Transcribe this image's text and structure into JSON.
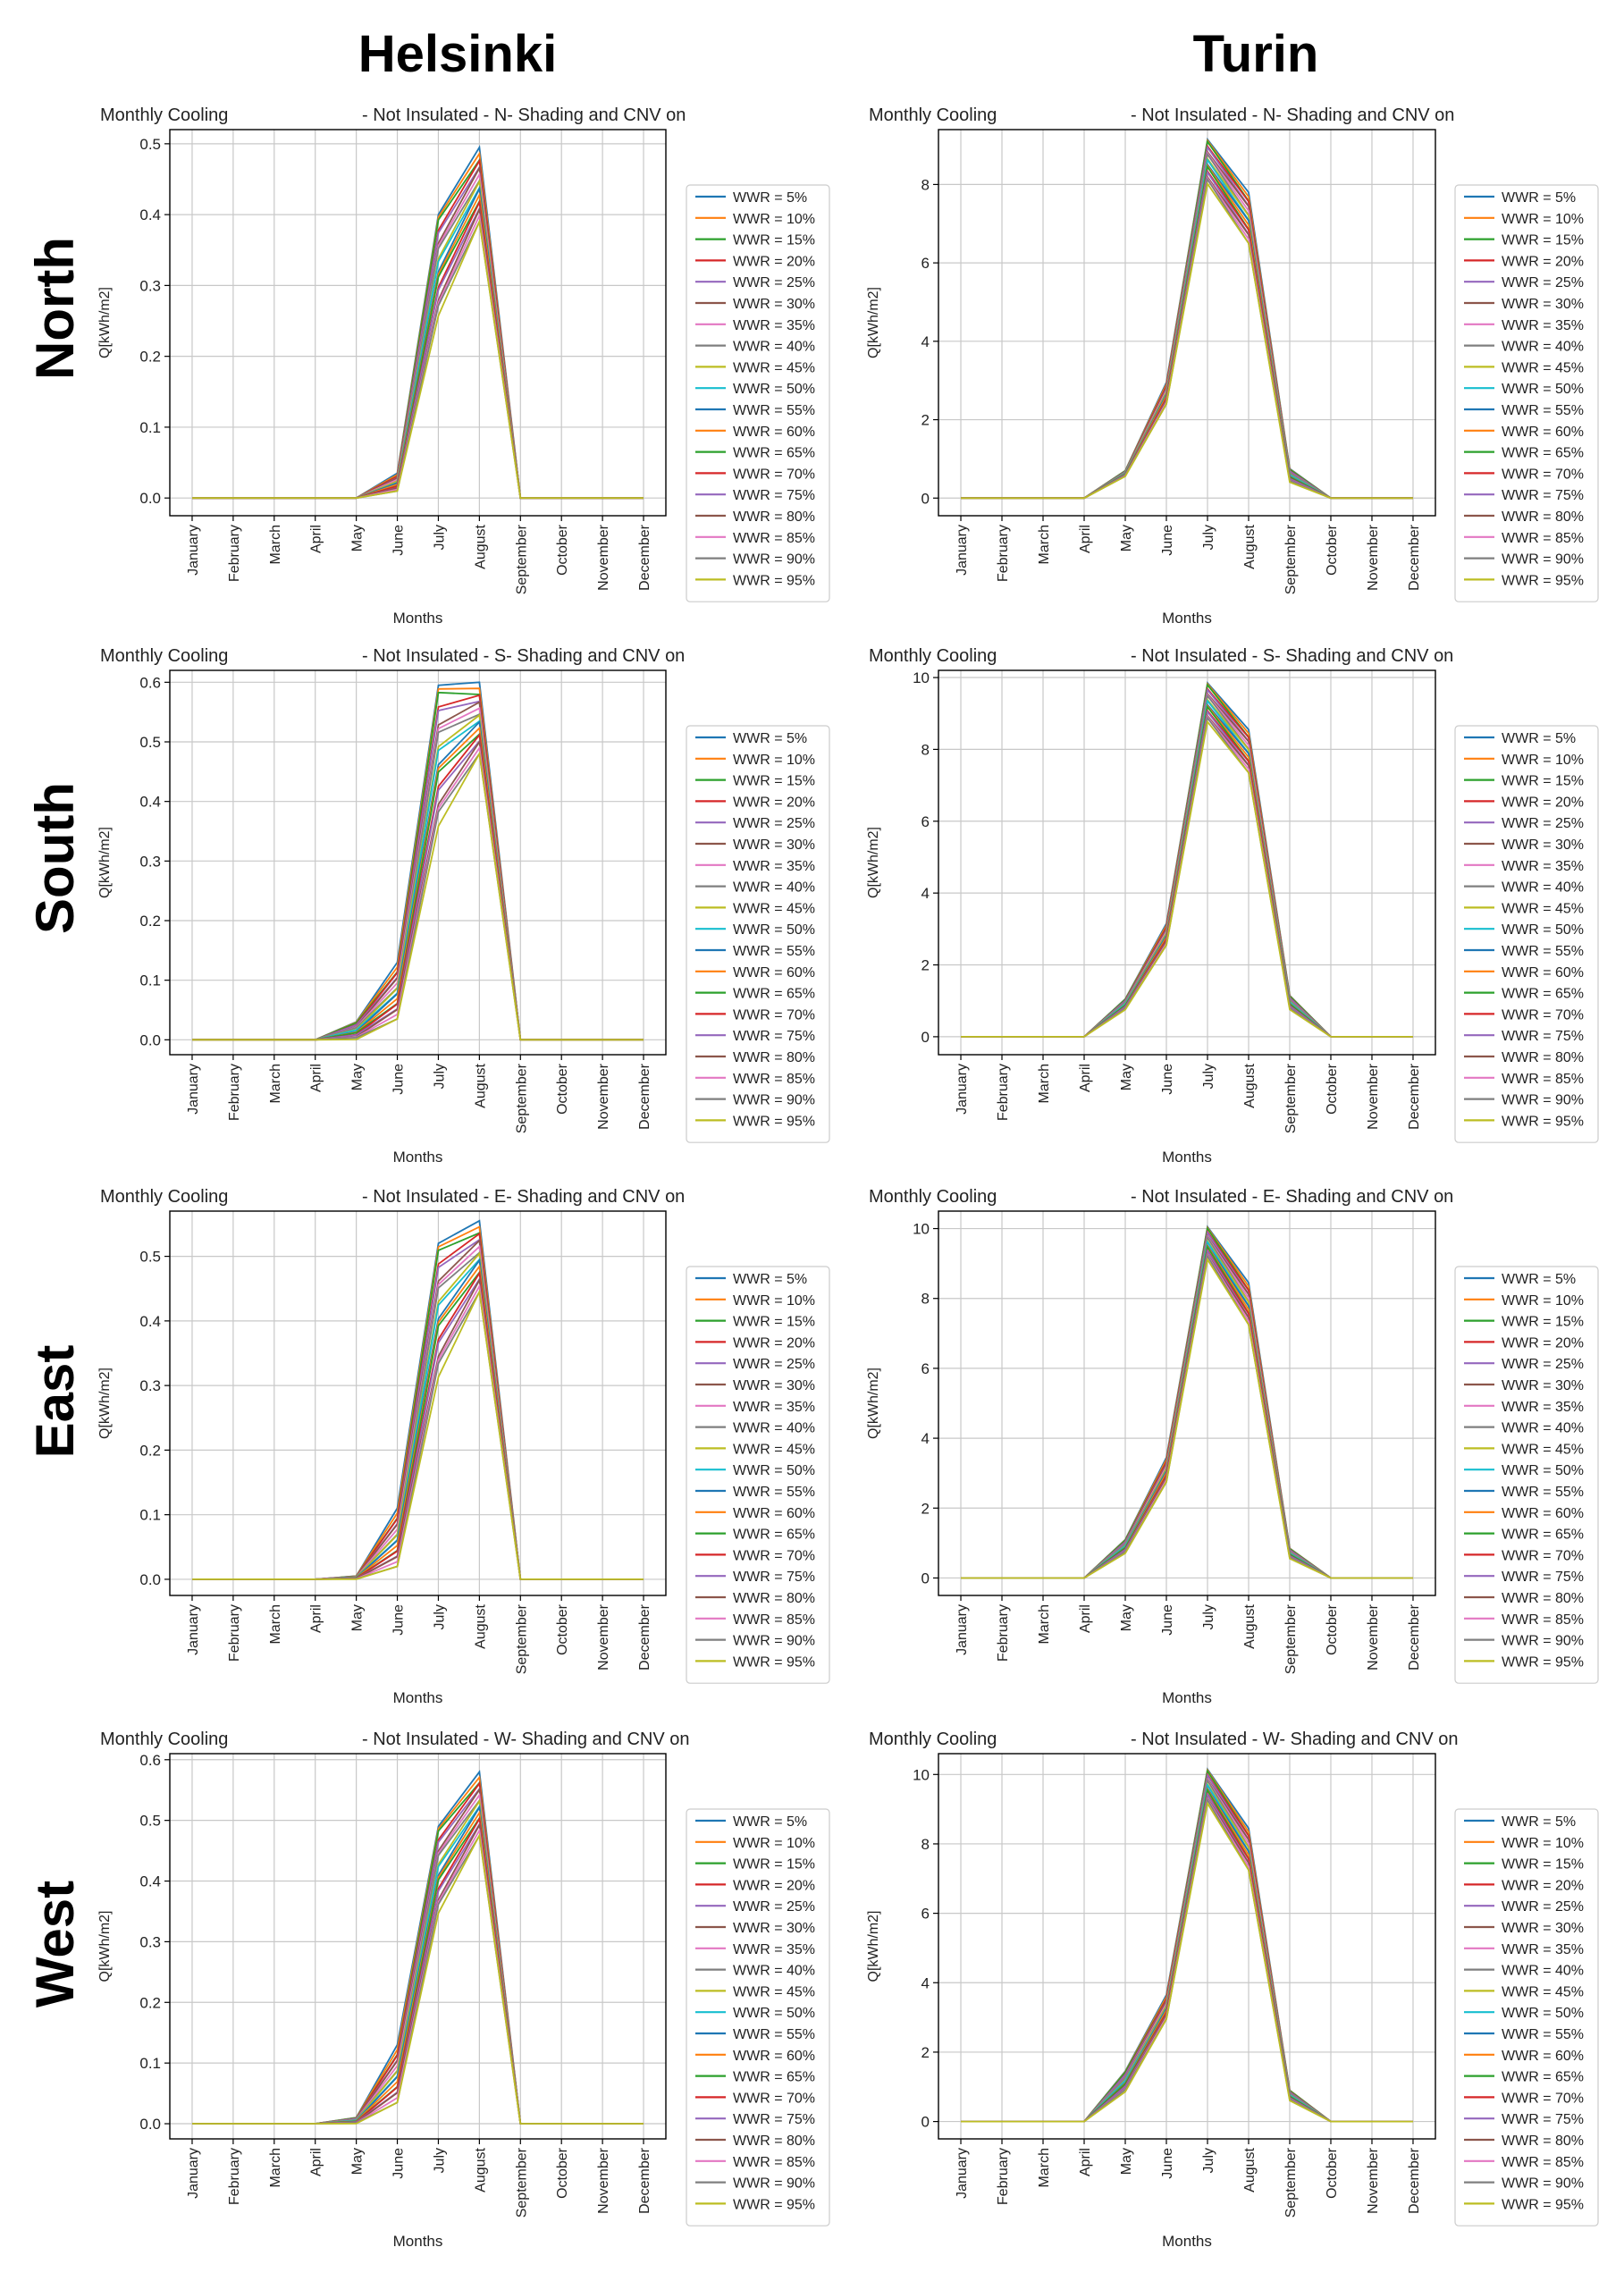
{
  "columns": [
    "Helsinki",
    "Turin"
  ],
  "rows": [
    "North",
    "South",
    "East",
    "West"
  ],
  "months": [
    "January",
    "February",
    "March",
    "April",
    "May",
    "June",
    "July",
    "August",
    "September",
    "October",
    "November",
    "December"
  ],
  "legend_labels": [
    "WWR = 5%",
    "WWR = 10%",
    "WWR = 15%",
    "WWR = 20%",
    "WWR = 25%",
    "WWR = 30%",
    "WWR = 35%",
    "WWR = 40%",
    "WWR = 45%",
    "WWR = 50%",
    "WWR = 55%",
    "WWR = 60%",
    "WWR = 65%",
    "WWR = 70%",
    "WWR = 75%",
    "WWR = 80%",
    "WWR = 85%",
    "WWR = 90%",
    "WWR = 95%"
  ],
  "palette": [
    "#1f77b4",
    "#ff7f0e",
    "#2ca02c",
    "#d62728",
    "#9467bd",
    "#8c564b",
    "#e377c2",
    "#7f7f7f",
    "#bcbd22",
    "#17becf"
  ],
  "chart_data": [
    {
      "id": "helsinki-north",
      "type": "line",
      "title_left": "Monthly Cooling",
      "title_right": "- Not Insulated - N- Shading and CNV on",
      "xlabel": "Months",
      "ylabel": "Q[kWh/m2]",
      "ylim": [
        -0.025,
        0.52
      ],
      "yticks": [
        0,
        0.1,
        0.2,
        0.3,
        0.4,
        0.5
      ],
      "ytick_labels": [
        "0.0",
        "0.1",
        "0.2",
        "0.3",
        "0.4",
        "0.5"
      ],
      "peak_range": [
        [
          0,
          0
        ],
        [
          0,
          0
        ],
        [
          0,
          0
        ],
        [
          0,
          0
        ],
        [
          0,
          0
        ],
        [
          0.01,
          0.035
        ],
        [
          0.255,
          0.4
        ],
        [
          0.39,
          0.495
        ],
        [
          0,
          0
        ],
        [
          0,
          0
        ],
        [
          0,
          0
        ],
        [
          0,
          0
        ]
      ]
    },
    {
      "id": "turin-north",
      "type": "line",
      "title_left": "Monthly Cooling",
      "title_right": "- Not Insulated - N- Shading and CNV on",
      "xlabel": "Months",
      "ylabel": "Q[kWh/m2]",
      "ylim": [
        -0.45,
        9.4
      ],
      "yticks": [
        0,
        2,
        4,
        6,
        8
      ],
      "ytick_labels": [
        "0",
        "2",
        "4",
        "6",
        "8"
      ],
      "peak_range": [
        [
          0,
          0
        ],
        [
          0,
          0
        ],
        [
          0,
          0
        ],
        [
          0,
          0
        ],
        [
          0.55,
          0.7
        ],
        [
          2.4,
          2.95
        ],
        [
          8.0,
          9.15
        ],
        [
          6.5,
          7.8
        ],
        [
          0.4,
          0.75
        ],
        [
          0,
          0
        ],
        [
          0,
          0
        ],
        [
          0,
          0
        ]
      ]
    },
    {
      "id": "helsinki-south",
      "type": "line",
      "title_left": "Monthly Cooling",
      "title_right": "- Not Insulated - S- Shading and CNV on",
      "xlabel": "Months",
      "ylabel": "Q[kWh/m2]",
      "ylim": [
        -0.025,
        0.62
      ],
      "yticks": [
        0,
        0.1,
        0.2,
        0.3,
        0.4,
        0.5,
        0.6
      ],
      "ytick_labels": [
        "0.0",
        "0.1",
        "0.2",
        "0.3",
        "0.4",
        "0.5",
        "0.6"
      ],
      "peak_range": [
        [
          0,
          0
        ],
        [
          0,
          0
        ],
        [
          0,
          0
        ],
        [
          0,
          0
        ],
        [
          0,
          0.03
        ],
        [
          0.035,
          0.13
        ],
        [
          0.355,
          0.595
        ],
        [
          0.48,
          0.6
        ],
        [
          0,
          0
        ],
        [
          0,
          0
        ],
        [
          0,
          0
        ],
        [
          0,
          0
        ]
      ]
    },
    {
      "id": "turin-south",
      "type": "line",
      "title_left": "Monthly Cooling",
      "title_right": "- Not Insulated - S- Shading and CNV on",
      "xlabel": "Months",
      "ylabel": "Q[kWh/m2]",
      "ylim": [
        -0.5,
        10.2
      ],
      "yticks": [
        0,
        2,
        4,
        6,
        8,
        10
      ],
      "ytick_labels": [
        "0",
        "2",
        "4",
        "6",
        "8",
        "10"
      ],
      "peak_range": [
        [
          0,
          0
        ],
        [
          0,
          0
        ],
        [
          0,
          0
        ],
        [
          0,
          0
        ],
        [
          0.75,
          1.05
        ],
        [
          2.55,
          3.15
        ],
        [
          8.75,
          9.85
        ],
        [
          7.35,
          8.55
        ],
        [
          0.75,
          1.15
        ],
        [
          0,
          0
        ],
        [
          0,
          0
        ],
        [
          0,
          0
        ]
      ]
    },
    {
      "id": "helsinki-east",
      "type": "line",
      "title_left": "Monthly Cooling",
      "title_right": "- Not Insulated - E- Shading and CNV on",
      "xlabel": "Months",
      "ylabel": "Q[kWh/m2]",
      "ylim": [
        -0.025,
        0.57
      ],
      "yticks": [
        0,
        0.1,
        0.2,
        0.3,
        0.4,
        0.5
      ],
      "ytick_labels": [
        "0.0",
        "0.1",
        "0.2",
        "0.3",
        "0.4",
        "0.5"
      ],
      "peak_range": [
        [
          0,
          0
        ],
        [
          0,
          0
        ],
        [
          0,
          0
        ],
        [
          0,
          0
        ],
        [
          0,
          0.005
        ],
        [
          0.02,
          0.11
        ],
        [
          0.31,
          0.52
        ],
        [
          0.445,
          0.555
        ],
        [
          0,
          0
        ],
        [
          0,
          0
        ],
        [
          0,
          0
        ],
        [
          0,
          0
        ]
      ]
    },
    {
      "id": "turin-east",
      "type": "line",
      "title_left": "Monthly Cooling",
      "title_right": "- Not Insulated - E- Shading and CNV on",
      "xlabel": "Months",
      "ylabel": "Q[kWh/m2]",
      "ylim": [
        -0.5,
        10.5
      ],
      "yticks": [
        0,
        2,
        4,
        6,
        8,
        10
      ],
      "ytick_labels": [
        "0",
        "2",
        "4",
        "6",
        "8",
        "10"
      ],
      "peak_range": [
        [
          0,
          0
        ],
        [
          0,
          0
        ],
        [
          0,
          0
        ],
        [
          0,
          0
        ],
        [
          0.7,
          1.1
        ],
        [
          2.75,
          3.45
        ],
        [
          9.1,
          10.05
        ],
        [
          7.25,
          8.45
        ],
        [
          0.55,
          0.85
        ],
        [
          0,
          0
        ],
        [
          0,
          0
        ],
        [
          0,
          0
        ]
      ]
    },
    {
      "id": "helsinki-west",
      "type": "line",
      "title_left": "Monthly Cooling",
      "title_right": "- Not Insulated - W- Shading and CNV on",
      "xlabel": "Months",
      "ylabel": "Q[kWh/m2]",
      "ylim": [
        -0.025,
        0.61
      ],
      "yticks": [
        0,
        0.1,
        0.2,
        0.3,
        0.4,
        0.5,
        0.6
      ],
      "ytick_labels": [
        "0.0",
        "0.1",
        "0.2",
        "0.3",
        "0.4",
        "0.5",
        "0.6"
      ],
      "peak_range": [
        [
          0,
          0
        ],
        [
          0,
          0
        ],
        [
          0,
          0
        ],
        [
          0,
          0
        ],
        [
          0,
          0.01
        ],
        [
          0.035,
          0.13
        ],
        [
          0.345,
          0.49
        ],
        [
          0.475,
          0.58
        ],
        [
          0,
          0
        ],
        [
          0,
          0
        ],
        [
          0,
          0
        ],
        [
          0,
          0
        ]
      ]
    },
    {
      "id": "turin-west",
      "type": "line",
      "title_left": "Monthly Cooling",
      "title_right": "- Not Insulated - W- Shading and CNV on",
      "xlabel": "Months",
      "ylabel": "Q[kWh/m2]",
      "ylim": [
        -0.5,
        10.6
      ],
      "yticks": [
        0,
        2,
        4,
        6,
        8,
        10
      ],
      "ytick_labels": [
        "0",
        "2",
        "4",
        "6",
        "8",
        "10"
      ],
      "peak_range": [
        [
          0,
          0
        ],
        [
          0,
          0
        ],
        [
          0,
          0
        ],
        [
          0,
          0
        ],
        [
          0.85,
          1.45
        ],
        [
          2.95,
          3.65
        ],
        [
          9.15,
          10.15
        ],
        [
          7.25,
          8.45
        ],
        [
          0.6,
          0.9
        ],
        [
          0,
          0
        ],
        [
          0,
          0
        ],
        [
          0,
          0
        ]
      ]
    }
  ]
}
